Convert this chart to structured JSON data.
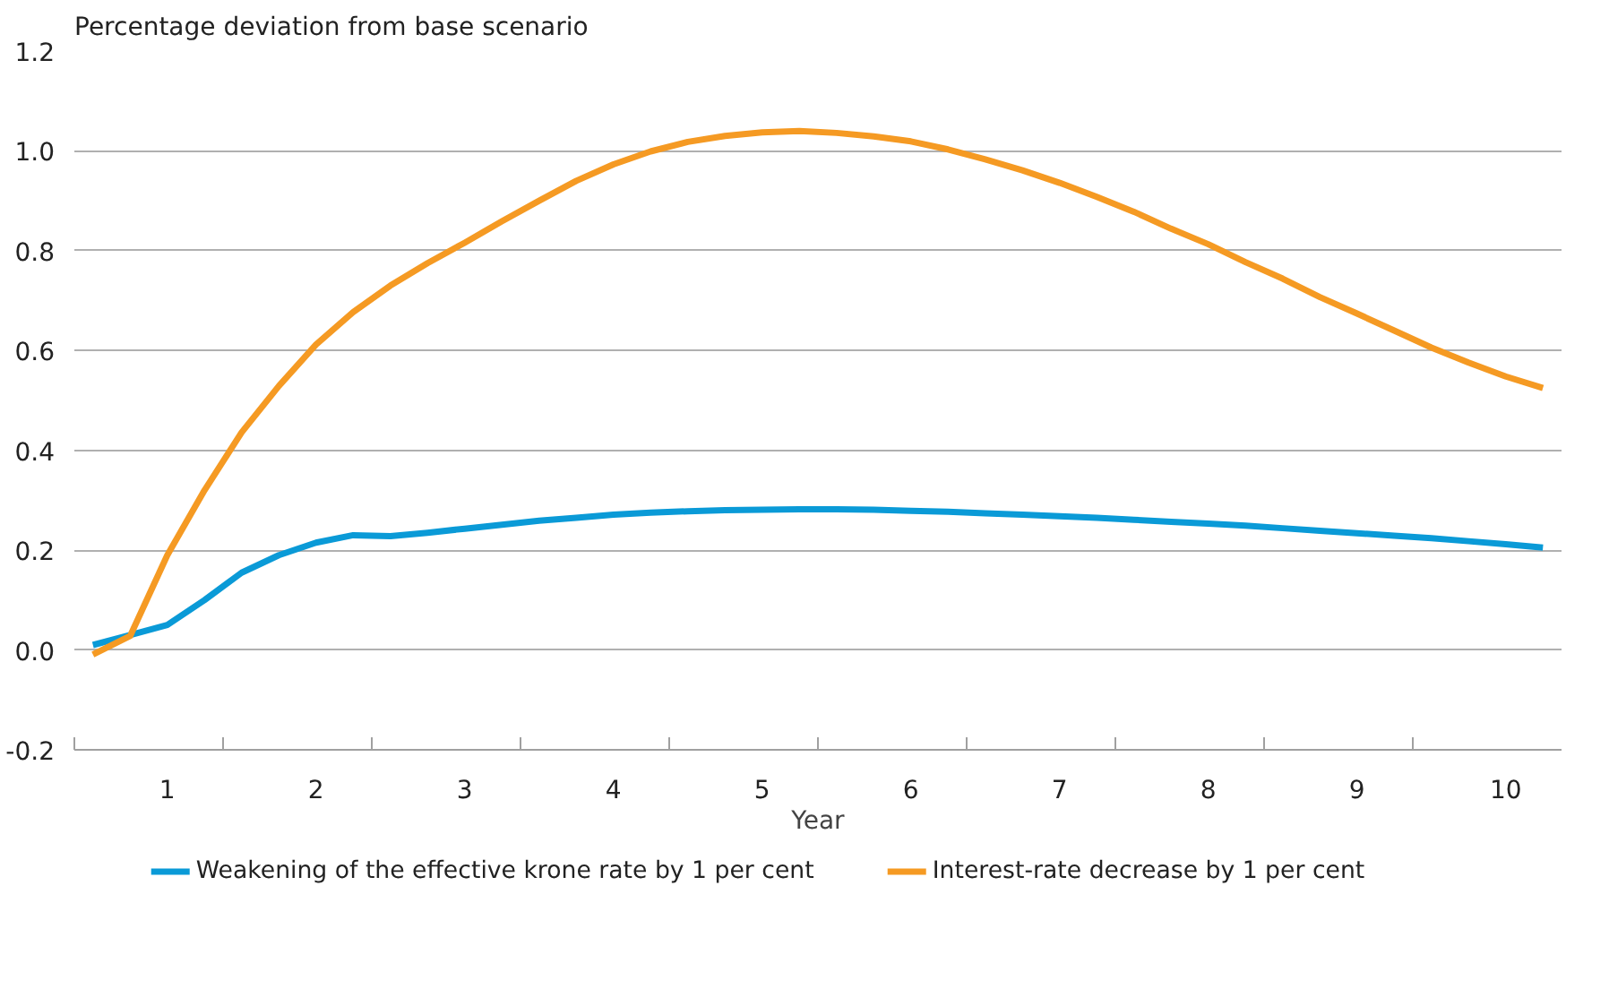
{
  "chart_data": {
    "type": "line",
    "title": "Percentage deviation from base scenario",
    "xlabel": "Year",
    "categories": [
      null,
      null,
      "1",
      null,
      null,
      null,
      "2",
      null,
      null,
      null,
      "3",
      null,
      null,
      null,
      "4",
      null,
      null,
      null,
      "5",
      null,
      null,
      null,
      "6",
      null,
      null,
      null,
      "7",
      null,
      null,
      null,
      "8",
      null,
      null,
      null,
      "9",
      null,
      null,
      null,
      "10",
      null
    ],
    "series": [
      {
        "name": "Weakening of the effective krone rate by 1 per cent",
        "color": "#0a9ad7",
        "values": [
          0.01,
          0.03,
          0.05,
          0.1,
          0.155,
          0.19,
          0.215,
          0.23,
          0.228,
          0.235,
          0.243,
          0.251,
          0.259,
          0.265,
          0.271,
          0.275,
          0.278,
          0.28,
          0.281,
          0.282,
          0.282,
          0.281,
          0.279,
          0.277,
          0.274,
          0.271,
          0.268,
          0.265,
          0.261,
          0.257,
          0.253,
          0.249,
          0.244,
          0.239,
          0.234,
          0.229,
          0.224,
          0.218,
          0.212,
          0.205
        ]
      },
      {
        "name": "Interest-rate decrease by 1 per cent",
        "color": "#f59a23",
        "values": [
          -0.009,
          0.028,
          0.19,
          0.32,
          0.436,
          0.529,
          0.612,
          0.677,
          0.73,
          0.775,
          0.816,
          0.859,
          0.9,
          0.94,
          0.973,
          0.999,
          1.018,
          1.03,
          1.037,
          1.04,
          1.036,
          1.029,
          1.019,
          1.003,
          0.983,
          0.961,
          0.936,
          0.908,
          0.878,
          0.844,
          0.813,
          0.777,
          0.744,
          0.707,
          0.674,
          0.64,
          0.606,
          0.576,
          0.548,
          0.525
        ]
      }
    ],
    "ylim": [
      -0.2,
      1.2
    ],
    "yticks": [
      {
        "value": -0.2,
        "label": "-0.2"
      },
      {
        "value": 0,
        "label": "0.0"
      },
      {
        "value": 0.2,
        "label": "0.2"
      },
      {
        "value": 0.4,
        "label": "0.4"
      },
      {
        "value": 0.6,
        "label": "0.6"
      },
      {
        "value": 0.8,
        "label": "0.8"
      },
      {
        "value": 1.0,
        "label": "1.0"
      },
      {
        "value": 1.2,
        "label": "1.2"
      }
    ],
    "grid": "y",
    "legend": "bottom",
    "marker": "none",
    "line_style": "solid"
  }
}
